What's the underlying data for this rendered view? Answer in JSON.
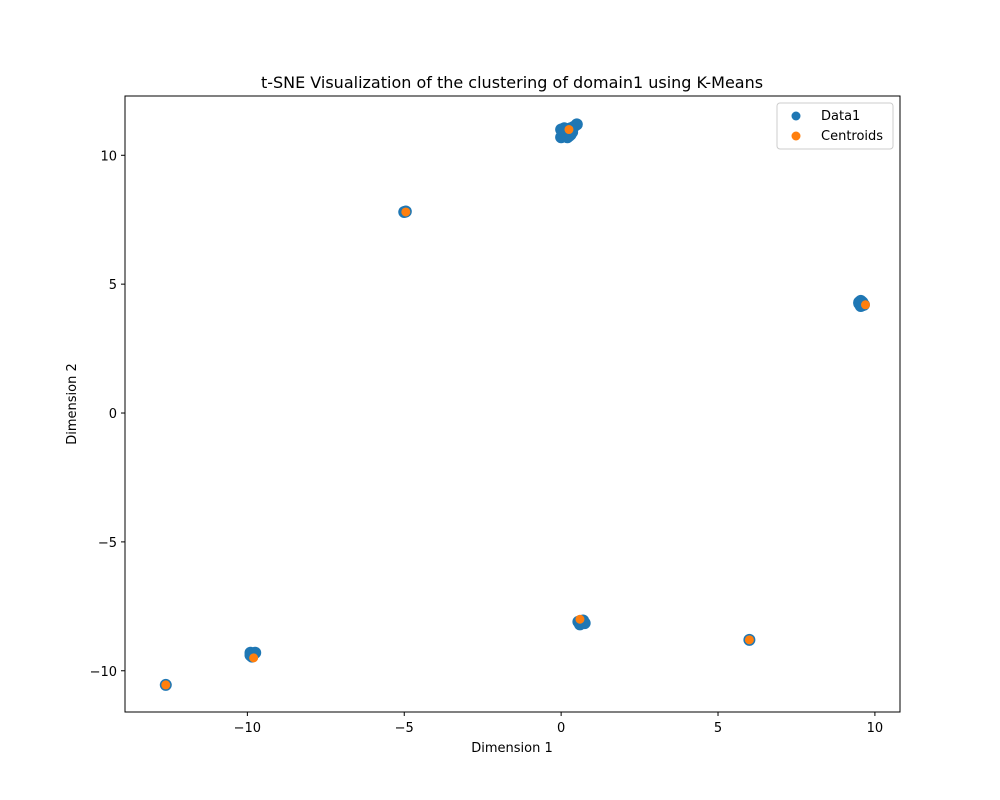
{
  "chart_data": {
    "type": "scatter",
    "title": "t-SNE Visualization of the clustering of domain1 using K-Means",
    "xlabel": "Dimension 1",
    "ylabel": "Dimension 2",
    "xlim": [
      -13.9,
      10.8
    ],
    "ylim": [
      -11.6,
      12.3
    ],
    "xticks": [
      -10,
      -5,
      0,
      5,
      10
    ],
    "xtick_labels": [
      "−10",
      "−5",
      "0",
      "5",
      "10"
    ],
    "yticks": [
      -10,
      -5,
      0,
      5,
      10
    ],
    "ytick_labels": [
      "−10",
      "−5",
      "0",
      "5",
      "10"
    ],
    "grid": false,
    "legend_position": "top-right",
    "series": [
      {
        "name": "Data1",
        "color": "#1f77b4",
        "points": [
          [
            0.0,
            11.0
          ],
          [
            0.1,
            10.8
          ],
          [
            0.0,
            10.7
          ],
          [
            0.2,
            11.0
          ],
          [
            0.15,
            10.85
          ],
          [
            0.25,
            10.75
          ],
          [
            0.3,
            11.05
          ],
          [
            0.35,
            10.9
          ],
          [
            0.05,
            10.95
          ],
          [
            0.2,
            10.7
          ],
          [
            0.4,
            11.1
          ],
          [
            0.3,
            10.8
          ],
          [
            0.1,
            11.05
          ],
          [
            0.5,
            11.2
          ],
          [
            -5.0,
            7.8
          ],
          [
            -4.95,
            7.82
          ],
          [
            9.5,
            4.25
          ],
          [
            9.6,
            4.3
          ],
          [
            9.55,
            4.15
          ],
          [
            9.65,
            4.2
          ],
          [
            9.5,
            4.3
          ],
          [
            9.6,
            4.18
          ],
          [
            9.55,
            4.35
          ],
          [
            -9.9,
            -9.3
          ],
          [
            -9.8,
            -9.35
          ],
          [
            -9.85,
            -9.45
          ],
          [
            -9.75,
            -9.3
          ],
          [
            -9.9,
            -9.4
          ],
          [
            0.55,
            -8.1
          ],
          [
            0.65,
            -8.15
          ],
          [
            0.7,
            -8.05
          ],
          [
            0.6,
            -8.2
          ],
          [
            0.75,
            -8.15
          ],
          [
            6.0,
            -8.8
          ],
          [
            -12.6,
            -10.55
          ]
        ]
      },
      {
        "name": "Centroids",
        "color": "#ff7f0e",
        "points": [
          [
            0.25,
            11.0
          ],
          [
            -4.95,
            7.8
          ],
          [
            9.7,
            4.2
          ],
          [
            -9.8,
            -9.5
          ],
          [
            0.6,
            -8.0
          ],
          [
            6.0,
            -8.8
          ],
          [
            -12.6,
            -10.55
          ]
        ]
      }
    ]
  }
}
